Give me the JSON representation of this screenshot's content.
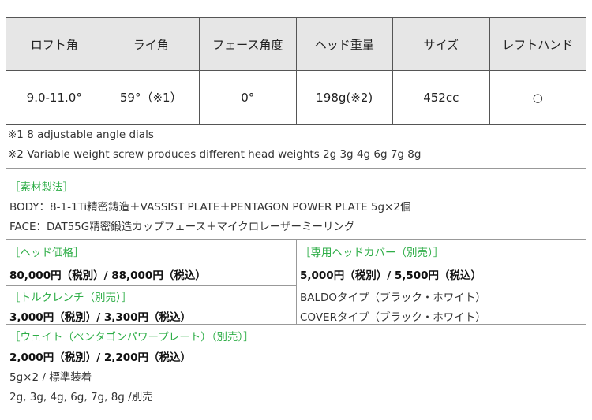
{
  "spec_table": {
    "headers": [
      "ロフト角",
      "ライ角",
      "フェース角度",
      "ヘッド重量",
      "サイズ",
      "レフトハンド"
    ],
    "values": [
      "9.0-11.0°",
      "59°（※1）",
      "0°",
      "198g(※2)",
      "452cc",
      "○"
    ]
  },
  "notes": [
    "※1  8 adjustable angle dials",
    "※2 Variable weight screw produces different head weights 2g 3g 4g 6g 7g 8g"
  ],
  "materials": {
    "title": "［素材製法］",
    "body": "BODY：8-1-1Ti精密鋳造＋VASSIST PLATE＋PENTAGON POWER PLATE 5g×2個",
    "face": "FACE：DAT55G精密鍛造カップフェース＋マイクロレーザーミーリング"
  },
  "head_price": {
    "title": "［ヘッド価格］",
    "price": "80,000円（税別）/ 88,000円（税込）"
  },
  "torque_wrench": {
    "title": "［トルクレンチ（別売）］",
    "price": "3,000円（税別）/ 3,300円（税込）"
  },
  "head_cover": {
    "title": "［専用ヘッドカバー（別売）］",
    "price": "5,000円（税別）/ 5,500円（税込）",
    "types": [
      "BALDOタイプ（ブラック・ホワイト）",
      "COVERタイプ（ブラック・ホワイト）"
    ]
  },
  "weight": {
    "title": "［ウェイト（ペンタゴンパワープレート）（別売）］",
    "price": "2,000円（税別）/ 2,200円（税込）",
    "standard": "5g×2 / 標準装着",
    "options": "2g, 3g, 4g, 6g, 7g, 8g /別売"
  },
  "colors": {
    "accent_green": "#2fae48",
    "header_bg": "#e6e6e6"
  }
}
